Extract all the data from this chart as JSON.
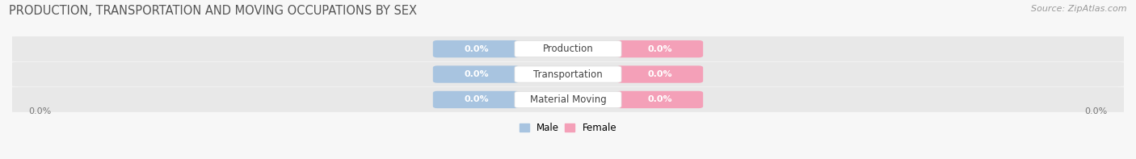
{
  "title": "PRODUCTION, TRANSPORTATION AND MOVING OCCUPATIONS BY SEX",
  "source": "Source: ZipAtlas.com",
  "categories": [
    "Production",
    "Transportation",
    "Material Moving"
  ],
  "male_values": [
    0.0,
    0.0,
    0.0
  ],
  "female_values": [
    0.0,
    0.0,
    0.0
  ],
  "male_color": "#a8c4e0",
  "female_color": "#f4a0b8",
  "male_label": "Male",
  "female_label": "Female",
  "label_color": "#ffffff",
  "category_color": "#444444",
  "bar_bg_color": "#e8e8e8",
  "bg_color": "#f7f7f7",
  "row_bg_color": "#efefef",
  "figsize": [
    14.06,
    1.97
  ],
  "dpi": 100,
  "title_fontsize": 10.5,
  "source_fontsize": 8,
  "bar_label_fontsize": 8,
  "category_fontsize": 8.5,
  "legend_fontsize": 8.5,
  "axis_label_fontsize": 8
}
